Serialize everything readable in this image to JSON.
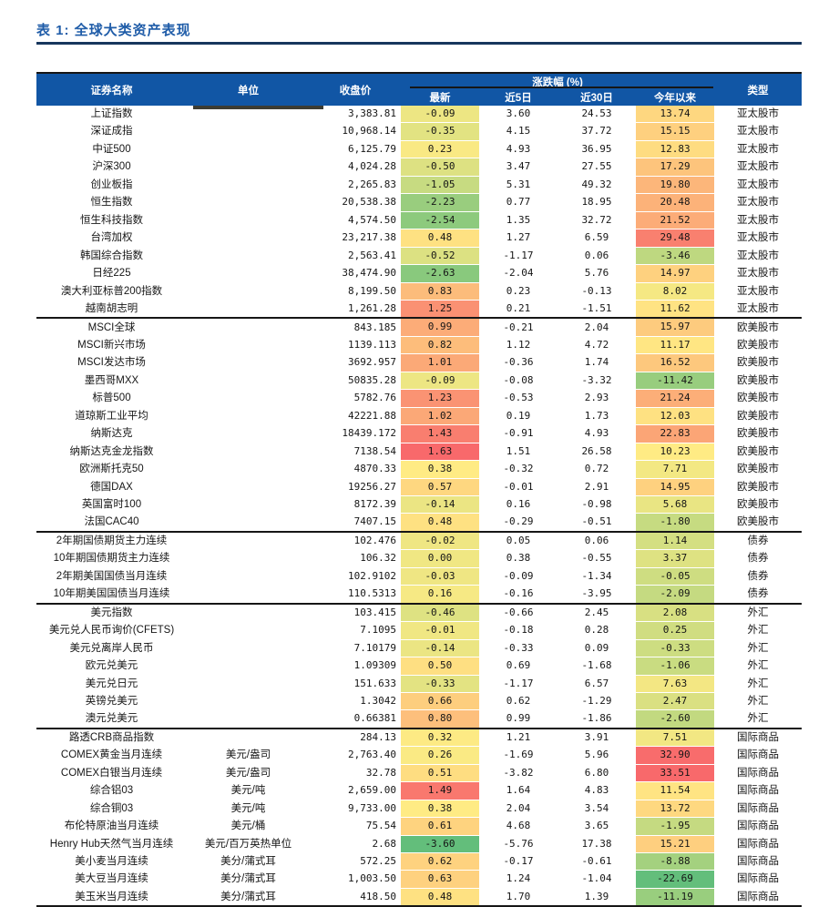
{
  "title": "表 1: 全球大类资产表现",
  "colors": {
    "header_bg": "#1156A5",
    "header_text": "#FFFFFF",
    "title_text": "#1F5CA8",
    "rule": "#17365D",
    "line": "#161616",
    "redaction": "#3C3C34",
    "scale_low": "#63BE7B",
    "scale_mid": "#FFEB84",
    "scale_high": "#F8696B"
  },
  "table": {
    "headers": {
      "name": "证券名称",
      "unit": "单位",
      "close": "收盘价",
      "change_group": "涨跌幅 (%)",
      "latest": "最新",
      "d5": "近5日",
      "d30": "近30日",
      "ytd": "今年以来",
      "type": "类型"
    },
    "columns": [
      "name",
      "unit",
      "close",
      "latest",
      "d5",
      "d30",
      "ytd",
      "type"
    ],
    "color_scale_columns": [
      3,
      6
    ],
    "section_breaks_after": [
      12,
      24,
      28,
      35
    ],
    "rows": [
      [
        "上证指数",
        "",
        "3,383.81",
        "-0.09",
        "3.60",
        "24.53",
        "13.74",
        "亚太股市"
      ],
      [
        "深证成指",
        "",
        "10,968.14",
        "-0.35",
        "4.15",
        "37.72",
        "15.15",
        "亚太股市"
      ],
      [
        "中证500",
        "",
        "6,125.79",
        "0.23",
        "4.93",
        "36.95",
        "12.83",
        "亚太股市"
      ],
      [
        "沪深300",
        "",
        "4,024.28",
        "-0.50",
        "3.47",
        "27.55",
        "17.29",
        "亚太股市"
      ],
      [
        "创业板指",
        "",
        "2,265.83",
        "-1.05",
        "5.31",
        "49.32",
        "19.80",
        "亚太股市"
      ],
      [
        "恒生指数",
        "",
        "20,538.38",
        "-2.23",
        "0.77",
        "18.95",
        "20.48",
        "亚太股市"
      ],
      [
        "恒生科技指数",
        "",
        "4,574.50",
        "-2.54",
        "1.35",
        "32.72",
        "21.52",
        "亚太股市"
      ],
      [
        "台湾加权",
        "",
        "23,217.38",
        "0.48",
        "1.27",
        "6.59",
        "29.48",
        "亚太股市"
      ],
      [
        "韩国综合指数",
        "",
        "2,563.41",
        "-0.52",
        "-1.17",
        "0.06",
        "-3.46",
        "亚太股市"
      ],
      [
        "日经225",
        "",
        "38,474.90",
        "-2.63",
        "-2.04",
        "5.76",
        "14.97",
        "亚太股市"
      ],
      [
        "澳大利亚标普200指数",
        "",
        "8,199.50",
        "0.83",
        "0.23",
        "-0.13",
        "8.02",
        "亚太股市"
      ],
      [
        "越南胡志明",
        "",
        "1,261.28",
        "1.25",
        "0.21",
        "-1.51",
        "11.62",
        "亚太股市"
      ],
      [
        "MSCI全球",
        "",
        "843.185",
        "0.99",
        "-0.21",
        "2.04",
        "15.97",
        "欧美股市"
      ],
      [
        "MSCI新兴市场",
        "",
        "1139.113",
        "0.82",
        "1.12",
        "4.72",
        "11.17",
        "欧美股市"
      ],
      [
        "MSCI发达市场",
        "",
        "3692.957",
        "1.01",
        "-0.36",
        "1.74",
        "16.52",
        "欧美股市"
      ],
      [
        "墨西哥MXX",
        "",
        "50835.28",
        "-0.09",
        "-0.08",
        "-3.32",
        "-11.42",
        "欧美股市"
      ],
      [
        "标普500",
        "",
        "5782.76",
        "1.23",
        "-0.53",
        "2.93",
        "21.24",
        "欧美股市"
      ],
      [
        "道琼斯工业平均",
        "",
        "42221.88",
        "1.02",
        "0.19",
        "1.73",
        "12.03",
        "欧美股市"
      ],
      [
        "纳斯达克",
        "",
        "18439.172",
        "1.43",
        "-0.91",
        "4.93",
        "22.83",
        "欧美股市"
      ],
      [
        "纳斯达克金龙指数",
        "",
        "7138.54",
        "1.63",
        "1.51",
        "26.58",
        "10.23",
        "欧美股市"
      ],
      [
        "欧洲斯托克50",
        "",
        "4870.33",
        "0.38",
        "-0.32",
        "0.72",
        "7.71",
        "欧美股市"
      ],
      [
        "德国DAX",
        "",
        "19256.27",
        "0.57",
        "-0.01",
        "2.91",
        "14.95",
        "欧美股市"
      ],
      [
        "英国富时100",
        "",
        "8172.39",
        "-0.14",
        "0.16",
        "-0.98",
        "5.68",
        "欧美股市"
      ],
      [
        "法国CAC40",
        "",
        "7407.15",
        "0.48",
        "-0.29",
        "-0.51",
        "-1.80",
        "欧美股市"
      ],
      [
        "2年期国债期货主力连续",
        "",
        "102.476",
        "-0.02",
        "0.05",
        "0.06",
        "1.14",
        "债券"
      ],
      [
        "10年期国债期货主力连续",
        "",
        "106.32",
        "0.00",
        "0.38",
        "-0.55",
        "3.37",
        "债券"
      ],
      [
        "2年期美国国债当月连续",
        "",
        "102.9102",
        "-0.03",
        "-0.09",
        "-1.34",
        "-0.05",
        "债券"
      ],
      [
        "10年期美国国债当月连续",
        "",
        "110.5313",
        "0.16",
        "-0.16",
        "-3.95",
        "-2.09",
        "债券"
      ],
      [
        "美元指数",
        "",
        "103.415",
        "-0.46",
        "-0.66",
        "2.45",
        "2.08",
        "外汇"
      ],
      [
        "美元兑人民币询价(CFETS)",
        "",
        "7.1095",
        "-0.01",
        "-0.18",
        "0.28",
        "0.25",
        "外汇"
      ],
      [
        "美元兑离岸人民币",
        "",
        "7.10179",
        "-0.14",
        "-0.33",
        "0.09",
        "-0.33",
        "外汇"
      ],
      [
        "欧元兑美元",
        "",
        "1.09309",
        "0.50",
        "0.69",
        "-1.68",
        "-1.06",
        "外汇"
      ],
      [
        "美元兑日元",
        "",
        "151.633",
        "-0.33",
        "-1.17",
        "6.57",
        "7.63",
        "外汇"
      ],
      [
        "英镑兑美元",
        "",
        "1.3042",
        "0.66",
        "0.62",
        "-1.29",
        "2.47",
        "外汇"
      ],
      [
        "澳元兑美元",
        "",
        "0.66381",
        "0.80",
        "0.99",
        "-1.86",
        "-2.60",
        "外汇"
      ],
      [
        "路透CRB商品指数",
        "",
        "284.13",
        "0.32",
        "1.21",
        "3.91",
        "7.51",
        "国际商品"
      ],
      [
        "COMEX黄金当月连续",
        "美元/盎司",
        "2,763.40",
        "0.26",
        "-1.69",
        "5.96",
        "32.90",
        "国际商品"
      ],
      [
        "COMEX白银当月连续",
        "美元/盎司",
        "32.78",
        "0.51",
        "-3.82",
        "6.80",
        "33.51",
        "国际商品"
      ],
      [
        "综合铝03",
        "美元/吨",
        "2,659.00",
        "1.49",
        "1.64",
        "4.83",
        "11.54",
        "国际商品"
      ],
      [
        "综合铜03",
        "美元/吨",
        "9,733.00",
        "0.38",
        "2.04",
        "3.54",
        "13.72",
        "国际商品"
      ],
      [
        "布伦特原油当月连续",
        "美元/桶",
        "75.54",
        "0.61",
        "4.68",
        "3.65",
        "-1.95",
        "国际商品"
      ],
      [
        "Henry Hub天然气当月连续",
        "美元/百万英热单位",
        "2.68",
        "-3.60",
        "-5.76",
        "17.38",
        "15.21",
        "国际商品"
      ],
      [
        "美小麦当月连续",
        "美分/蒲式耳",
        "572.25",
        "0.62",
        "-0.17",
        "-0.61",
        "-8.88",
        "国际商品"
      ],
      [
        "美大豆当月连续",
        "美分/蒲式耳",
        "1,003.50",
        "0.63",
        "1.24",
        "-1.04",
        "-22.69",
        "国际商品"
      ],
      [
        "美玉米当月连续",
        "美分/蒲式耳",
        "418.50",
        "0.48",
        "1.70",
        "1.39",
        "-11.19",
        "国际商品"
      ]
    ]
  }
}
